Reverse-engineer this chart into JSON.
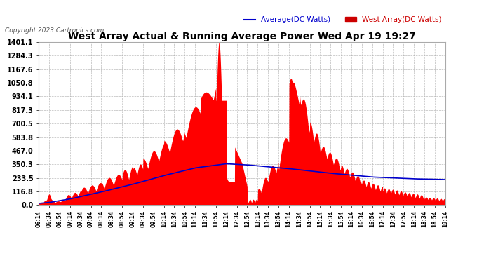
{
  "title": "West Array Actual & Running Average Power Wed Apr 19 19:27",
  "copyright": "Copyright 2023 Cartronics.com",
  "legend_avg": "Average(DC Watts)",
  "legend_west": "West Array(DC Watts)",
  "bg_color": "#ffffff",
  "plot_bg_color": "#ffffff",
  "grid_color": "#aaaaaa",
  "title_color": "#000000",
  "copyright_color": "#555555",
  "legend_avg_color": "#0000cc",
  "legend_west_color": "#cc0000",
  "fill_color": "#ff0000",
  "line_color": "#0000cc",
  "yticks": [
    0.0,
    116.8,
    233.5,
    350.3,
    467.0,
    583.8,
    700.5,
    817.3,
    934.1,
    1050.8,
    1167.6,
    1284.3,
    1401.1
  ],
  "ymax": 1401.1,
  "ymin": 0.0,
  "xtick_labels": [
    "06:14",
    "06:34",
    "06:54",
    "07:14",
    "07:34",
    "07:54",
    "08:14",
    "08:34",
    "08:54",
    "09:14",
    "09:34",
    "09:54",
    "10:14",
    "10:34",
    "10:54",
    "11:14",
    "11:34",
    "11:54",
    "12:14",
    "12:34",
    "12:54",
    "13:14",
    "13:34",
    "13:54",
    "14:14",
    "14:34",
    "14:54",
    "15:14",
    "15:34",
    "15:54",
    "16:14",
    "16:34",
    "16:54",
    "17:14",
    "17:34",
    "17:54",
    "18:14",
    "18:34",
    "18:54",
    "19:14"
  ]
}
